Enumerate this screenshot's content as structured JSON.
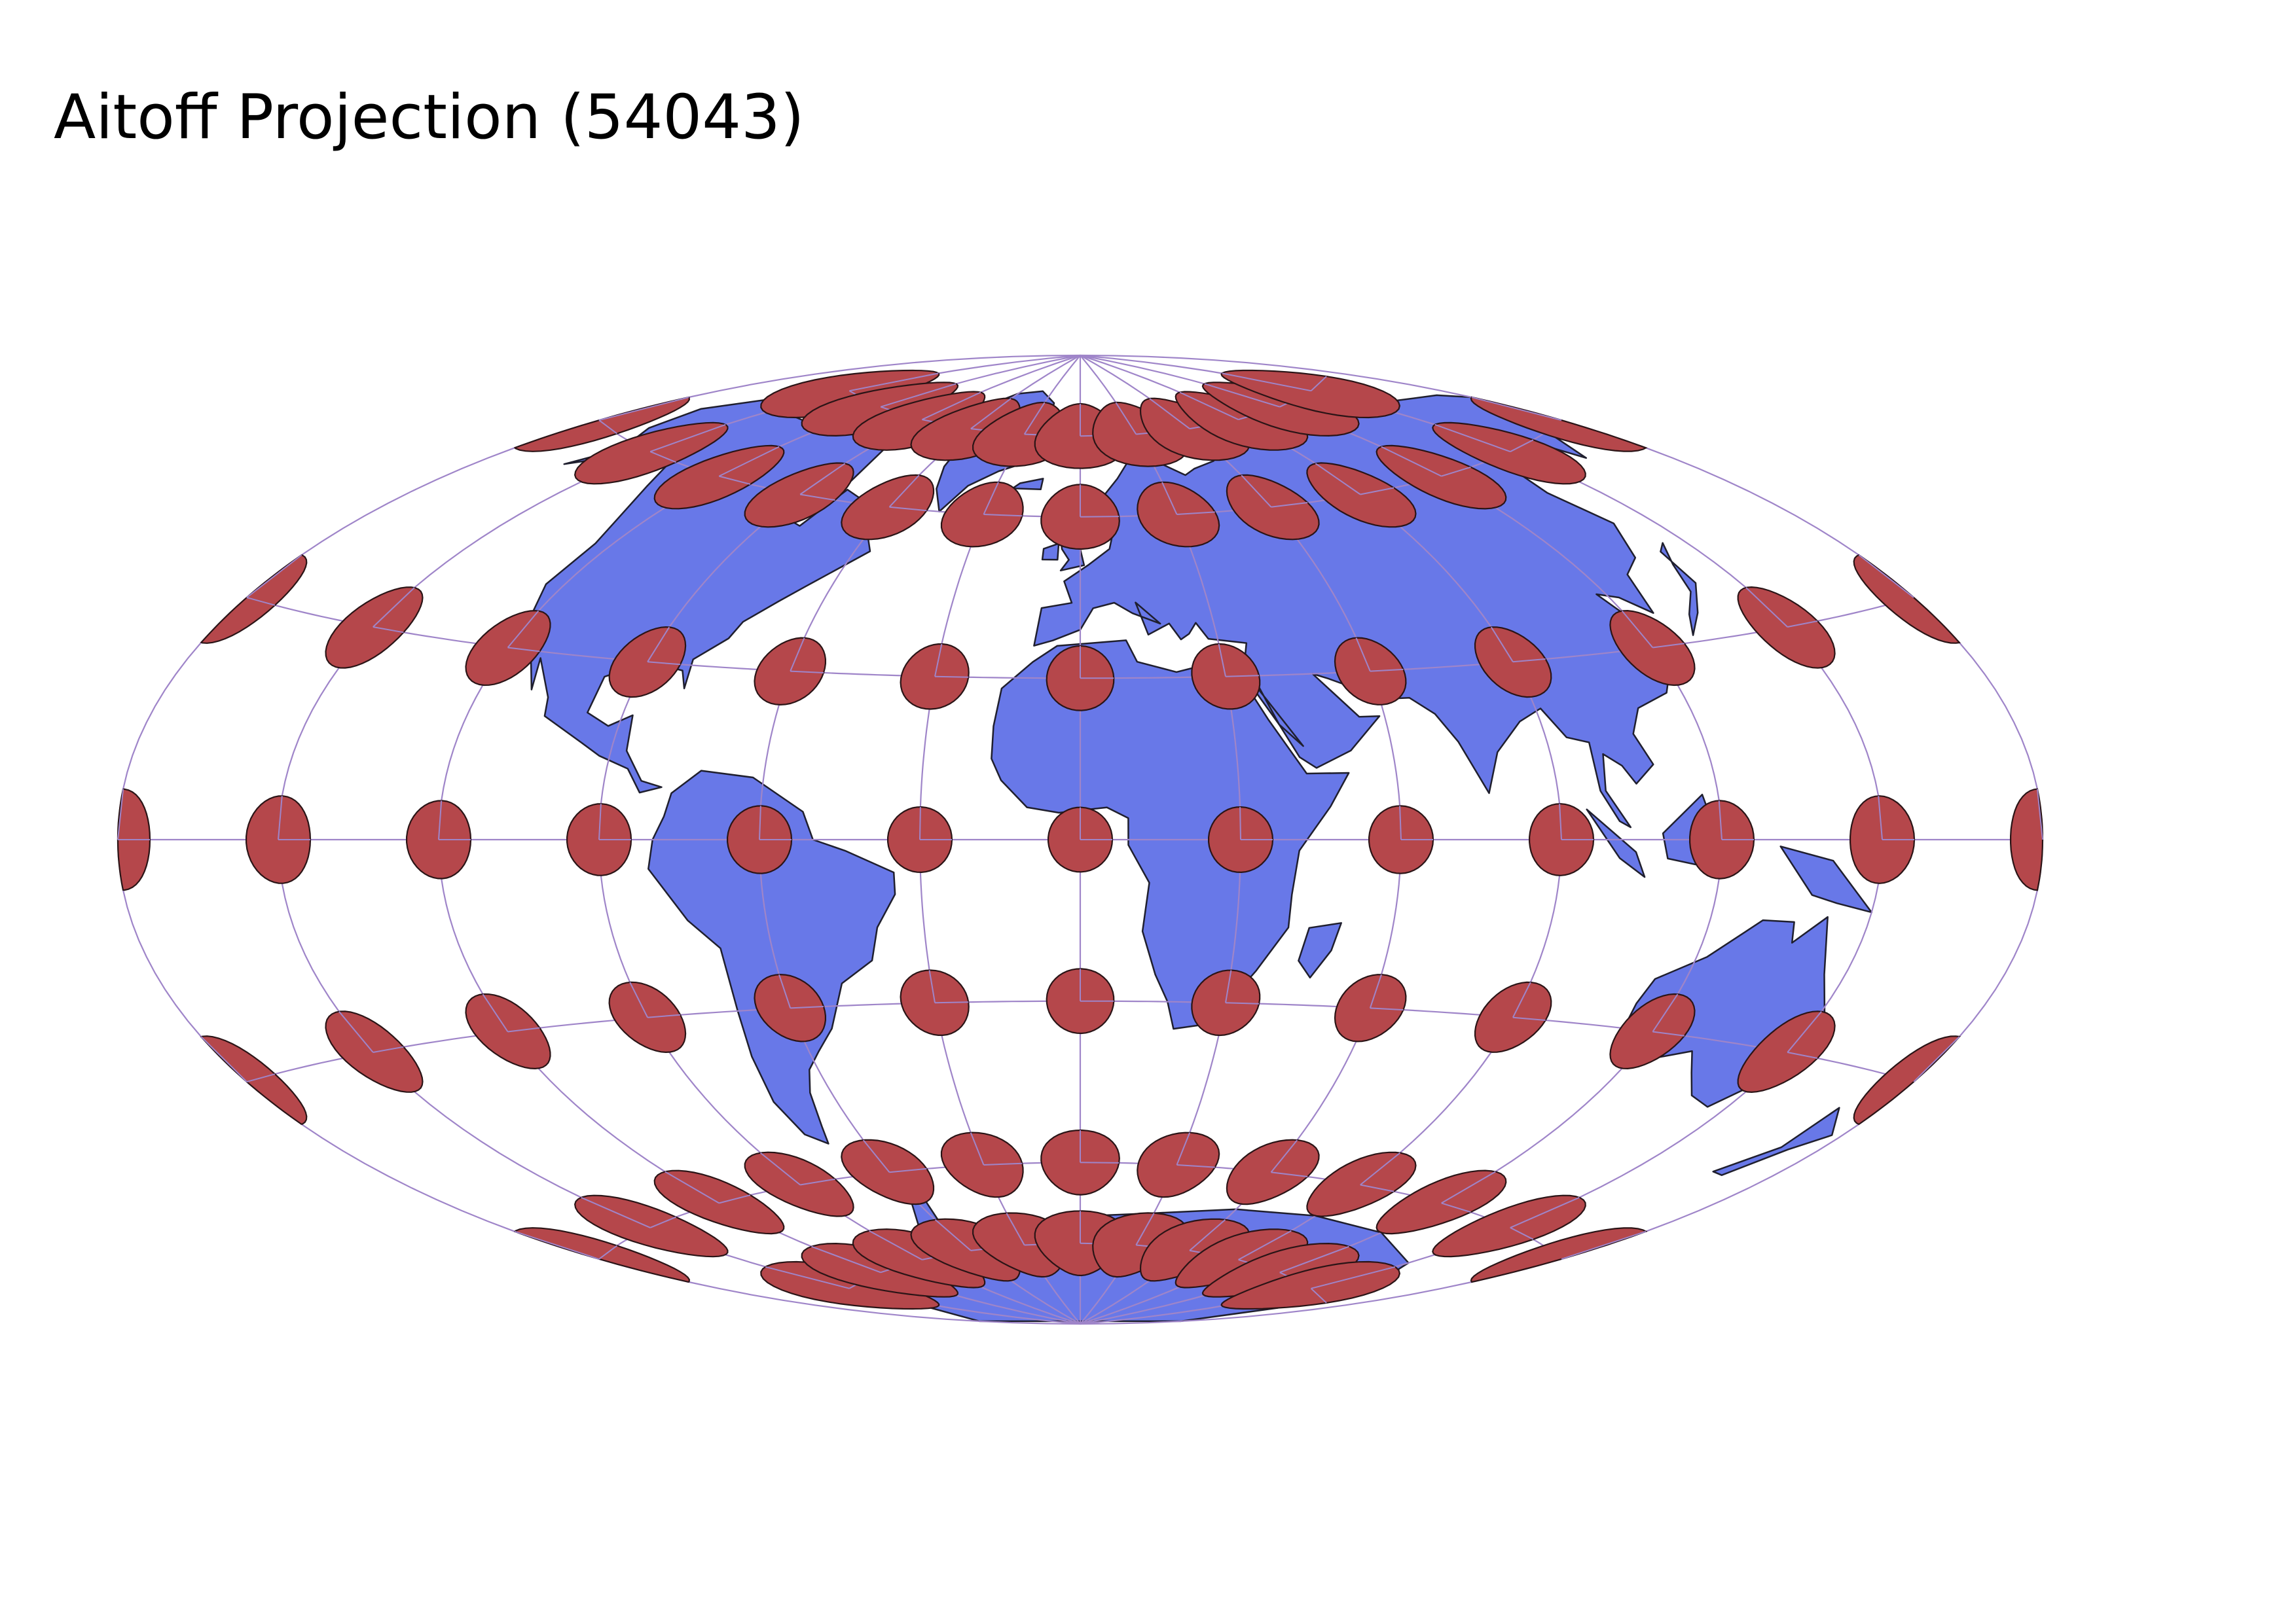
{
  "title": "Aitoff Projection (54043)",
  "colors": {
    "land": "#6878e8",
    "land_stroke": "#1f1f2e",
    "indicatrix": "#b5474b",
    "indicatrix_stroke": "#2a1416",
    "graticule": "#9f85c9",
    "background": "#ffffff"
  },
  "graticule": {
    "meridian_step_deg": 30,
    "parallel_step_deg": 30
  },
  "indicatrix": {
    "lon_step_deg": 30,
    "lat_step_deg": 30,
    "lats": [
      -75,
      -60,
      -30,
      0,
      30,
      60,
      75
    ]
  }
}
